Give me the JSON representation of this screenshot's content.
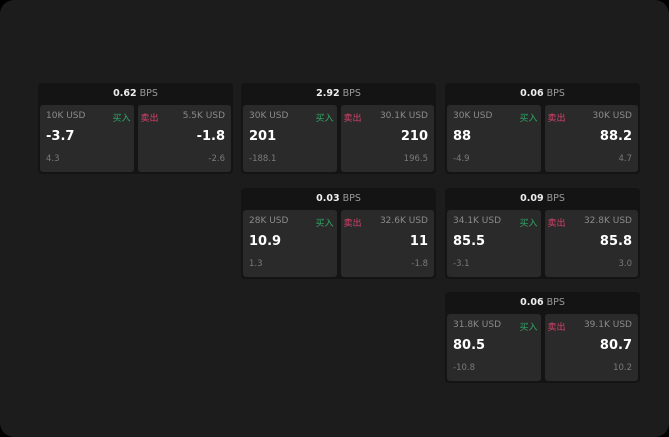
{
  "colors": {
    "buy": "#2fa866",
    "sell": "#d6416a",
    "background": "#1c1c1c"
  },
  "labels": {
    "unit": "BPS",
    "buy": "买入",
    "sell": "卖出"
  },
  "cards": [
    {
      "spread": "0.62",
      "buy": {
        "amount": "10K USD",
        "price": "-3.7",
        "change": "4.3"
      },
      "sell": {
        "amount": "5.5K USD",
        "price": "-1.8",
        "change": "-2.6"
      }
    },
    {
      "spread": "2.92",
      "buy": {
        "amount": "30K USD",
        "price": "201",
        "change": "-188.1"
      },
      "sell": {
        "amount": "30.1K USD",
        "price": "210",
        "change": "196.5"
      }
    },
    {
      "spread": "0.06",
      "buy": {
        "amount": "30K USD",
        "price": "88",
        "change": "-4.9"
      },
      "sell": {
        "amount": "30K USD",
        "price": "88.2",
        "change": "4.7"
      }
    },
    {
      "spread": "0.03",
      "buy": {
        "amount": "28K USD",
        "price": "10.9",
        "change": "1.3"
      },
      "sell": {
        "amount": "32.6K USD",
        "price": "11",
        "change": "-1.8"
      }
    },
    {
      "spread": "0.09",
      "buy": {
        "amount": "34.1K USD",
        "price": "85.5",
        "change": "-3.1"
      },
      "sell": {
        "amount": "32.8K USD",
        "price": "85.8",
        "change": "3.0"
      }
    },
    {
      "spread": "0.06",
      "buy": {
        "amount": "31.8K USD",
        "price": "80.5",
        "change": "-10.8"
      },
      "sell": {
        "amount": "39.1K USD",
        "price": "80.7",
        "change": "10.2"
      }
    }
  ]
}
